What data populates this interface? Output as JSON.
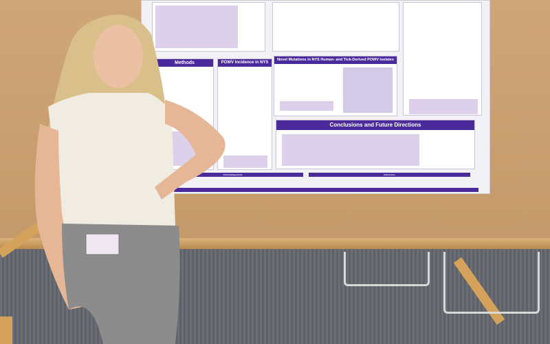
{
  "poster": {
    "sections": {
      "methods": "Methods",
      "incidence": "POWV Incidence in NYS",
      "mutations": "Novel Mutations in NYS Human- and Tick-Derived POWV Isolates",
      "conclusions": "Conclusions and Future Directions",
      "acknowledgements": "Acknowledgements",
      "references": "References"
    },
    "accent": "#4b2a9c"
  },
  "scene": {
    "background": "#c9a274",
    "carpet": "#64676d"
  }
}
